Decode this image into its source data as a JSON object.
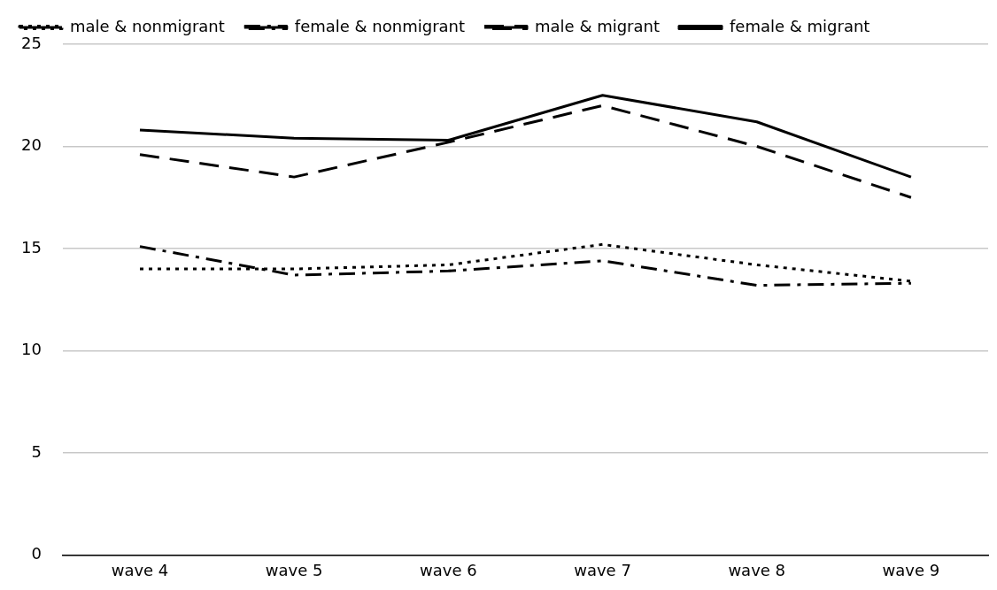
{
  "chart_data": {
    "type": "line",
    "categories": [
      "wave 4",
      "wave 5",
      "wave 6",
      "wave 7",
      "wave 8",
      "wave 9"
    ],
    "series": [
      {
        "name": "male & nonmigrant",
        "color": "#000000",
        "line_style": "dotted",
        "values": [
          14.0,
          14.0,
          14.2,
          15.2,
          14.2,
          13.4
        ]
      },
      {
        "name": "female & nonmigrant",
        "color": "#000000",
        "line_style": "dashdot",
        "values": [
          15.1,
          13.7,
          13.9,
          14.4,
          13.2,
          13.3
        ]
      },
      {
        "name": "male & migrant",
        "color": "#000000",
        "line_style": "dashed",
        "values": [
          19.6,
          18.5,
          20.2,
          22.0,
          20.0,
          17.5
        ]
      },
      {
        "name": "female & migrant",
        "color": "#000000",
        "line_style": "solid",
        "values": [
          20.8,
          20.4,
          20.3,
          22.5,
          21.2,
          18.5
        ]
      }
    ],
    "ylim": [
      0,
      25
    ],
    "yticks": [
      0,
      5,
      10,
      15,
      20,
      25
    ],
    "grid": "y",
    "legend": "top left",
    "marker": "none"
  }
}
